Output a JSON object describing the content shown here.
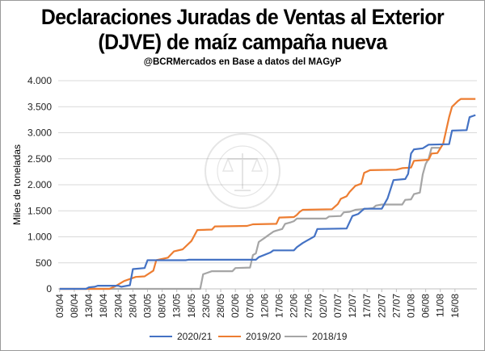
{
  "title_line1": "Declaraciones Juradas de Ventas al Exterior",
  "title_line2": "(DJVE) de maíz campaña nueva",
  "subtitle": "@BCRMercados  en Base a datos del MAGyP",
  "watermark": "BOLSA DE COMERCIO DE ROSARIO",
  "chart_data": {
    "type": "line",
    "ylabel": "Miles de toneladas",
    "ylim": [
      0,
      4000
    ],
    "yticks": [
      0,
      500,
      1000,
      1500,
      2000,
      2500,
      3000,
      3500,
      4000
    ],
    "yticks_label": [
      "0",
      "500",
      "1.000",
      "1.500",
      "2.000",
      "2.500",
      "3.000",
      "3.500",
      "4.000"
    ],
    "xticks": [
      "03/04",
      "08/04",
      "13/04",
      "18/04",
      "23/04",
      "28/04",
      "03/05",
      "08/05",
      "13/05",
      "18/05",
      "23/05",
      "28/05",
      "02/06",
      "07/06",
      "12/06",
      "17/06",
      "22/06",
      "27/06",
      "02/07",
      "07/07",
      "12/07",
      "17/07",
      "22/07",
      "27/07",
      "01/08",
      "06/08",
      "11/08",
      "16/08"
    ],
    "grid": true,
    "legend_position": "bottom",
    "series": [
      {
        "name": "2020/21",
        "color": "#4472C4",
        "points": [
          [
            0,
            0
          ],
          [
            9,
            0
          ],
          [
            10,
            30
          ],
          [
            12,
            40
          ],
          [
            13,
            60
          ],
          [
            20,
            60
          ],
          [
            21,
            40
          ],
          [
            24,
            70
          ],
          [
            25,
            380
          ],
          [
            29,
            400
          ],
          [
            30,
            550
          ],
          [
            43,
            550
          ],
          [
            44,
            560
          ],
          [
            67,
            560
          ],
          [
            68,
            610
          ],
          [
            72,
            700
          ],
          [
            73,
            740
          ],
          [
            80,
            740
          ],
          [
            81,
            800
          ],
          [
            83,
            880
          ],
          [
            87,
            1010
          ],
          [
            88,
            1150
          ],
          [
            98,
            1160
          ],
          [
            100,
            1400
          ],
          [
            102,
            1440
          ],
          [
            104,
            1540
          ],
          [
            110,
            1540
          ],
          [
            112,
            1740
          ],
          [
            114,
            2090
          ],
          [
            118,
            2110
          ],
          [
            119,
            2210
          ],
          [
            120,
            2600
          ],
          [
            121,
            2680
          ],
          [
            124,
            2700
          ],
          [
            126,
            2770
          ],
          [
            133,
            2780
          ],
          [
            134,
            3040
          ],
          [
            139,
            3050
          ],
          [
            140,
            3300
          ],
          [
            142,
            3340
          ]
        ]
      },
      {
        "name": "2019/20",
        "color": "#ED7D31",
        "points": [
          [
            0,
            0
          ],
          [
            17,
            0
          ],
          [
            19,
            50
          ],
          [
            22,
            150
          ],
          [
            26,
            230
          ],
          [
            29,
            240
          ],
          [
            32,
            350
          ],
          [
            33,
            550
          ],
          [
            37,
            600
          ],
          [
            39,
            720
          ],
          [
            42,
            760
          ],
          [
            45,
            920
          ],
          [
            47,
            1130
          ],
          [
            52,
            1140
          ],
          [
            53,
            1200
          ],
          [
            64,
            1210
          ],
          [
            66,
            1240
          ],
          [
            74,
            1250
          ],
          [
            75,
            1370
          ],
          [
            80,
            1380
          ],
          [
            81,
            1420
          ],
          [
            82,
            1480
          ],
          [
            83,
            1520
          ],
          [
            93,
            1530
          ],
          [
            95,
            1630
          ],
          [
            96,
            1730
          ],
          [
            98,
            1780
          ],
          [
            99,
            1860
          ],
          [
            101,
            1980
          ],
          [
            103,
            2020
          ],
          [
            104,
            2230
          ],
          [
            106,
            2280
          ],
          [
            115,
            2290
          ],
          [
            117,
            2320
          ],
          [
            120,
            2330
          ],
          [
            121,
            2460
          ],
          [
            126,
            2480
          ],
          [
            127,
            2600
          ],
          [
            129,
            2610
          ],
          [
            131,
            2790
          ],
          [
            133,
            3300
          ],
          [
            134,
            3500
          ],
          [
            136,
            3610
          ],
          [
            137,
            3650
          ],
          [
            142,
            3650
          ]
        ]
      },
      {
        "name": "2018/19",
        "color": "#A5A5A5",
        "points": [
          [
            0,
            0
          ],
          [
            48,
            0
          ],
          [
            49,
            280
          ],
          [
            50,
            300
          ],
          [
            52,
            340
          ],
          [
            59,
            340
          ],
          [
            60,
            400
          ],
          [
            65,
            410
          ],
          [
            66,
            650
          ],
          [
            67,
            680
          ],
          [
            68,
            900
          ],
          [
            70,
            980
          ],
          [
            71,
            1020
          ],
          [
            73,
            1100
          ],
          [
            74,
            1120
          ],
          [
            76,
            1150
          ],
          [
            77,
            1250
          ],
          [
            79,
            1280
          ],
          [
            80,
            1300
          ],
          [
            81,
            1350
          ],
          [
            91,
            1350
          ],
          [
            92,
            1390
          ],
          [
            96,
            1400
          ],
          [
            97,
            1470
          ],
          [
            99,
            1480
          ],
          [
            100,
            1500
          ],
          [
            101,
            1520
          ],
          [
            103,
            1530
          ],
          [
            107,
            1550
          ],
          [
            108,
            1600
          ],
          [
            110,
            1620
          ],
          [
            117,
            1620
          ],
          [
            118,
            1710
          ],
          [
            120,
            1720
          ],
          [
            121,
            1820
          ],
          [
            123,
            1850
          ],
          [
            124,
            2200
          ],
          [
            125,
            2400
          ],
          [
            126,
            2500
          ],
          [
            127,
            2710
          ],
          [
            130,
            2710
          ]
        ]
      }
    ]
  }
}
